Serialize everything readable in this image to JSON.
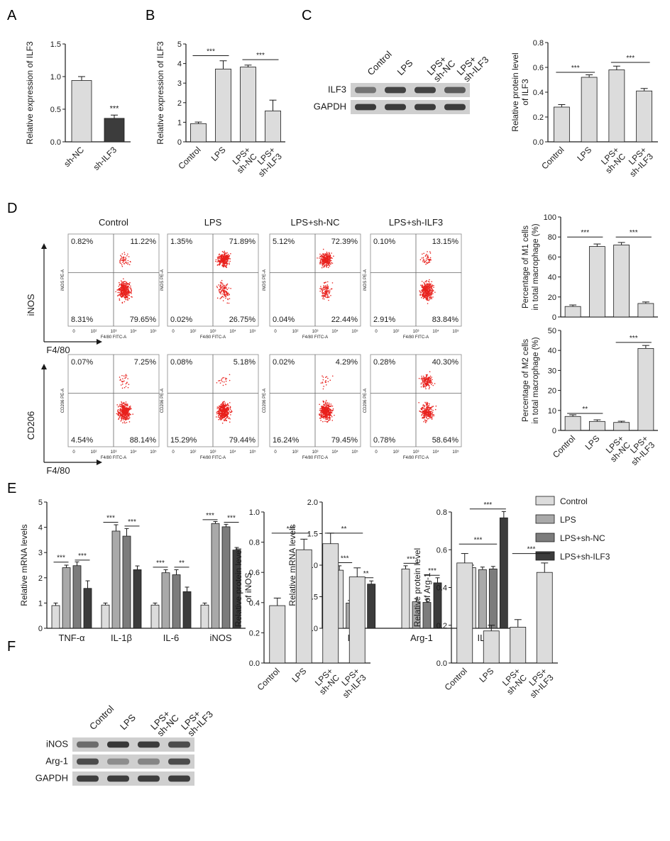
{
  "colors": {
    "control": "#dcdcdc",
    "lps": "#a9a9a9",
    "lps_sh_nc": "#7c7c7c",
    "lps_sh_ilf3": "#3c3c3c",
    "axis": "#1a1a1a",
    "dot": "#e8201c",
    "blot_band": "#2a2a2a"
  },
  "panel_labels": {
    "a": "A",
    "b": "B",
    "c": "C",
    "d": "D",
    "e": "E",
    "f": "F"
  },
  "western_c": {
    "lanes": [
      "Control",
      "LPS",
      "LPS+\nsh-NC",
      "LPS+\nsh-ILF3"
    ],
    "rows": [
      "ILF3",
      "GAPDH"
    ]
  },
  "western_f": {
    "lanes": [
      "Control",
      "LPS",
      "LPS+\nsh-NC",
      "LPS+\nsh-ILF3"
    ],
    "rows": [
      "iNOS",
      "Arg-1",
      "GAPDH"
    ]
  },
  "flow": {
    "columns": [
      "Control",
      "LPS",
      "LPS+sh-NC",
      "LPS+sh-ILF3"
    ],
    "xaxis_inner": "F4/80 FITC-A",
    "ticks": [
      "0",
      "10²",
      "10³",
      "10⁴",
      "10⁵"
    ],
    "rows": [
      {
        "marker_label": "iNOS",
        "marker_axis_inner": "iNOS PE-A",
        "xaxis_outer": "F4/80",
        "quadrants": [
          [
            "0.82%",
            "11.22%",
            "8.31%",
            "79.65%"
          ],
          [
            "1.35%",
            "71.89%",
            "0.02%",
            "26.75%"
          ],
          [
            "5.12%",
            "72.39%",
            "0.04%",
            "22.44%"
          ],
          [
            "0.10%",
            "13.15%",
            "2.91%",
            "83.84%"
          ]
        ]
      },
      {
        "marker_label": "CD206",
        "marker_axis_inner": "CD206 PE-A",
        "xaxis_outer": "F4/80",
        "quadrants": [
          [
            "0.07%",
            "7.25%",
            "4.54%",
            "88.14%"
          ],
          [
            "0.08%",
            "5.18%",
            "15.29%",
            "79.44%"
          ],
          [
            "0.02%",
            "4.29%",
            "16.24%",
            "79.45%"
          ],
          [
            "0.28%",
            "40.30%",
            "0.78%",
            "58.64%"
          ]
        ]
      }
    ]
  },
  "legend_e": [
    "Control",
    "LPS",
    "LPS+sh-NC",
    "LPS+sh-ILF3"
  ],
  "chart_data": [
    {
      "id": "A",
      "type": "bar",
      "categories": [
        "sh-NC",
        "sh-ILF3"
      ],
      "values": [
        0.94,
        0.36
      ],
      "errors": [
        0.06,
        0.05
      ],
      "ylabel": "Relative expression of ILF3",
      "ylim": [
        0,
        1.5
      ],
      "yticks": [
        "0.0",
        "0.5",
        "1.0",
        "1.5"
      ],
      "sig": [
        {
          "text": "***",
          "bar": 1
        }
      ]
    },
    {
      "id": "B",
      "type": "bar",
      "categories": [
        "Control",
        "LPS",
        "LPS+\nsh-NC",
        "LPS+\nsh-ILF3"
      ],
      "values": [
        0.93,
        3.72,
        3.82,
        1.58
      ],
      "errors": [
        0.08,
        0.42,
        0.1,
        0.55
      ],
      "ylabel": "Relative expression of ILF3",
      "ylim": [
        0,
        5
      ],
      "yticks": [
        "0",
        "1",
        "2",
        "3",
        "4",
        "5"
      ],
      "sig": [
        {
          "text": "***",
          "from": 0,
          "to": 1,
          "y": 4.4
        },
        {
          "text": "***",
          "from": 2,
          "to": 3,
          "y": 4.2
        }
      ]
    },
    {
      "id": "C",
      "type": "bar",
      "categories": [
        "Control",
        "LPS",
        "LPS+\nsh-NC",
        "LPS+\nsh-ILF3"
      ],
      "values": [
        0.28,
        0.52,
        0.58,
        0.41
      ],
      "errors": [
        0.02,
        0.02,
        0.03,
        0.02
      ],
      "ylabel": "Relative protein level\nof ILF3",
      "ylim": [
        0,
        0.8
      ],
      "yticks": [
        "0.0",
        "0.2",
        "0.4",
        "0.6",
        "0.8"
      ],
      "sig": [
        {
          "text": "***",
          "from": 0,
          "to": 1,
          "y": 0.56
        },
        {
          "text": "***",
          "from": 2,
          "to": 3,
          "y": 0.64
        }
      ]
    },
    {
      "id": "D-M1",
      "type": "bar",
      "categories": [
        "Control",
        "LPS",
        "LPS+\nsh-NC",
        "LPS+\nsh-ILF3"
      ],
      "values": [
        10.5,
        70.5,
        72,
        13.5
      ],
      "errors": [
        1.5,
        2.5,
        2.5,
        1.5
      ],
      "ylabel": "Percentage of M1 cells\nin total macrophage (%)",
      "ylim": [
        0,
        100
      ],
      "yticks": [
        "0",
        "20",
        "40",
        "60",
        "80",
        "100"
      ],
      "sig": [
        {
          "text": "***",
          "from": 0,
          "to": 1,
          "y": 80
        },
        {
          "text": "***",
          "from": 2,
          "to": 3,
          "y": 80
        }
      ]
    },
    {
      "id": "D-M2",
      "type": "bar",
      "categories": [
        "Control",
        "LPS",
        "LPS+\nsh-NC",
        "LPS+\nsh-ILF3"
      ],
      "values": [
        7,
        4.5,
        4,
        41
      ],
      "errors": [
        0.8,
        0.8,
        0.6,
        1.5
      ],
      "ylabel": "Percentage of M2 cells\nin total macrophage (%)",
      "ylim": [
        0,
        50
      ],
      "yticks": [
        "0",
        "10",
        "20",
        "30",
        "40",
        "50"
      ],
      "sig": [
        {
          "text": "**",
          "from": 0,
          "to": 1,
          "y": 8.5
        },
        {
          "text": "***",
          "from": 2,
          "to": 3,
          "y": 44
        }
      ]
    },
    {
      "id": "E-left",
      "type": "bar",
      "categories": [
        "TNF-α",
        "IL-1β",
        "IL-6",
        "iNOS"
      ],
      "series": [
        {
          "name": "Control",
          "values": [
            0.9,
            0.92,
            0.92,
            0.92
          ],
          "errors": [
            0.1,
            0.08,
            0.08,
            0.08
          ]
        },
        {
          "name": "LPS",
          "values": [
            2.4,
            3.85,
            2.2,
            4.15
          ],
          "errors": [
            0.1,
            0.25,
            0.12,
            0.08
          ]
        },
        {
          "name": "LPS+sh-NC",
          "values": [
            2.48,
            3.65,
            2.12,
            4.02
          ],
          "errors": [
            0.15,
            0.3,
            0.2,
            0.1
          ]
        },
        {
          "name": "LPS+sh-ILF3",
          "values": [
            1.58,
            2.32,
            1.45,
            3.1
          ],
          "errors": [
            0.3,
            0.15,
            0.18,
            0.1
          ]
        }
      ],
      "ylabel": "Relative mRNA levels",
      "ylim": [
        0,
        5
      ],
      "yticks": [
        "0",
        "1",
        "2",
        "3",
        "4",
        "5"
      ],
      "sig": [
        {
          "text": "***",
          "group": 0,
          "from": 0,
          "to": 1,
          "y": 2.62
        },
        {
          "text": "***",
          "group": 0,
          "from": 2,
          "to": 3,
          "y": 2.7
        },
        {
          "text": "***",
          "group": 1,
          "from": 0,
          "to": 1,
          "y": 4.2
        },
        {
          "text": "***",
          "group": 1,
          "from": 2,
          "to": 3,
          "y": 4.05
        },
        {
          "text": "***",
          "group": 2,
          "from": 0,
          "to": 1,
          "y": 2.42
        },
        {
          "text": "**",
          "group": 2,
          "from": 2,
          "to": 3,
          "y": 2.42
        },
        {
          "text": "***",
          "group": 3,
          "from": 0,
          "to": 1,
          "y": 4.3
        },
        {
          "text": "***",
          "group": 3,
          "from": 2,
          "to": 3,
          "y": 4.2
        }
      ]
    },
    {
      "id": "E-right",
      "type": "bar",
      "categories": [
        "IL-4",
        "Arg-1",
        "IL-10"
      ],
      "series": [
        {
          "name": "Control",
          "values": [
            0.92,
            0.94,
            0.96
          ],
          "errors": [
            0.07,
            0.05,
            0.04
          ]
        },
        {
          "name": "LPS",
          "values": [
            0.4,
            0.42,
            0.93
          ],
          "errors": [
            0.04,
            0.05,
            0.04
          ]
        },
        {
          "name": "LPS+sh-NC",
          "values": [
            0.45,
            0.41,
            0.94
          ],
          "errors": [
            0.06,
            0.05,
            0.04
          ]
        },
        {
          "name": "LPS+sh-ILF3",
          "values": [
            0.7,
            0.72,
            1.75
          ],
          "errors": [
            0.05,
            0.08,
            0.1
          ]
        }
      ],
      "ylabel": "Relative mRNA levels",
      "ylim": [
        0,
        2.0
      ],
      "yticks": [
        "0.0",
        "0.5",
        "1.0",
        "1.5",
        "2.0"
      ],
      "sig": [
        {
          "text": "***",
          "group": 0,
          "from": 0,
          "to": 1,
          "y": 1.04
        },
        {
          "text": "**",
          "group": 0,
          "from": 2,
          "to": 3,
          "y": 0.8
        },
        {
          "text": "***",
          "group": 1,
          "from": 0,
          "to": 1,
          "y": 1.03
        },
        {
          "text": "***",
          "group": 1,
          "from": 2,
          "to": 3,
          "y": 0.84
        },
        {
          "text": "***",
          "group": 2,
          "from": 0,
          "to": 3,
          "y": 1.89
        }
      ]
    },
    {
      "id": "F-iNOS",
      "type": "bar",
      "categories": [
        "Control",
        "LPS",
        "LPS+\nsh-NC",
        "LPS+\nsh-ILF3"
      ],
      "values": [
        0.38,
        0.75,
        0.79,
        0.57
      ],
      "errors": [
        0.05,
        0.07,
        0.07,
        0.06
      ],
      "ylabel": "Relative protein level\nof iNOS",
      "ylim": [
        0,
        1.0
      ],
      "yticks": [
        "0.0",
        "0.2",
        "0.4",
        "0.6",
        "0.8",
        "1.0"
      ],
      "sig": [
        {
          "text": "***",
          "from": 0,
          "to": 1,
          "y": 0.86
        },
        {
          "text": "**",
          "from": 2,
          "to": 3,
          "y": 0.86
        }
      ]
    },
    {
      "id": "F-Arg1",
      "type": "bar",
      "categories": [
        "Control",
        "LPS",
        "LPS+\nsh-NC",
        "LPS+\nsh-ILF3"
      ],
      "values": [
        0.53,
        0.17,
        0.19,
        0.48
      ],
      "errors": [
        0.05,
        0.03,
        0.04,
        0.05
      ],
      "ylabel": "Relative protein level\nof Arg-1",
      "ylim": [
        0,
        0.8
      ],
      "yticks": [
        "0.0",
        "0.2",
        "0.4",
        "0.6",
        "0.8"
      ],
      "sig": [
        {
          "text": "***",
          "from": 0,
          "to": 1,
          "y": 0.63
        },
        {
          "text": "***",
          "from": 2,
          "to": 3,
          "y": 0.58
        }
      ]
    }
  ]
}
